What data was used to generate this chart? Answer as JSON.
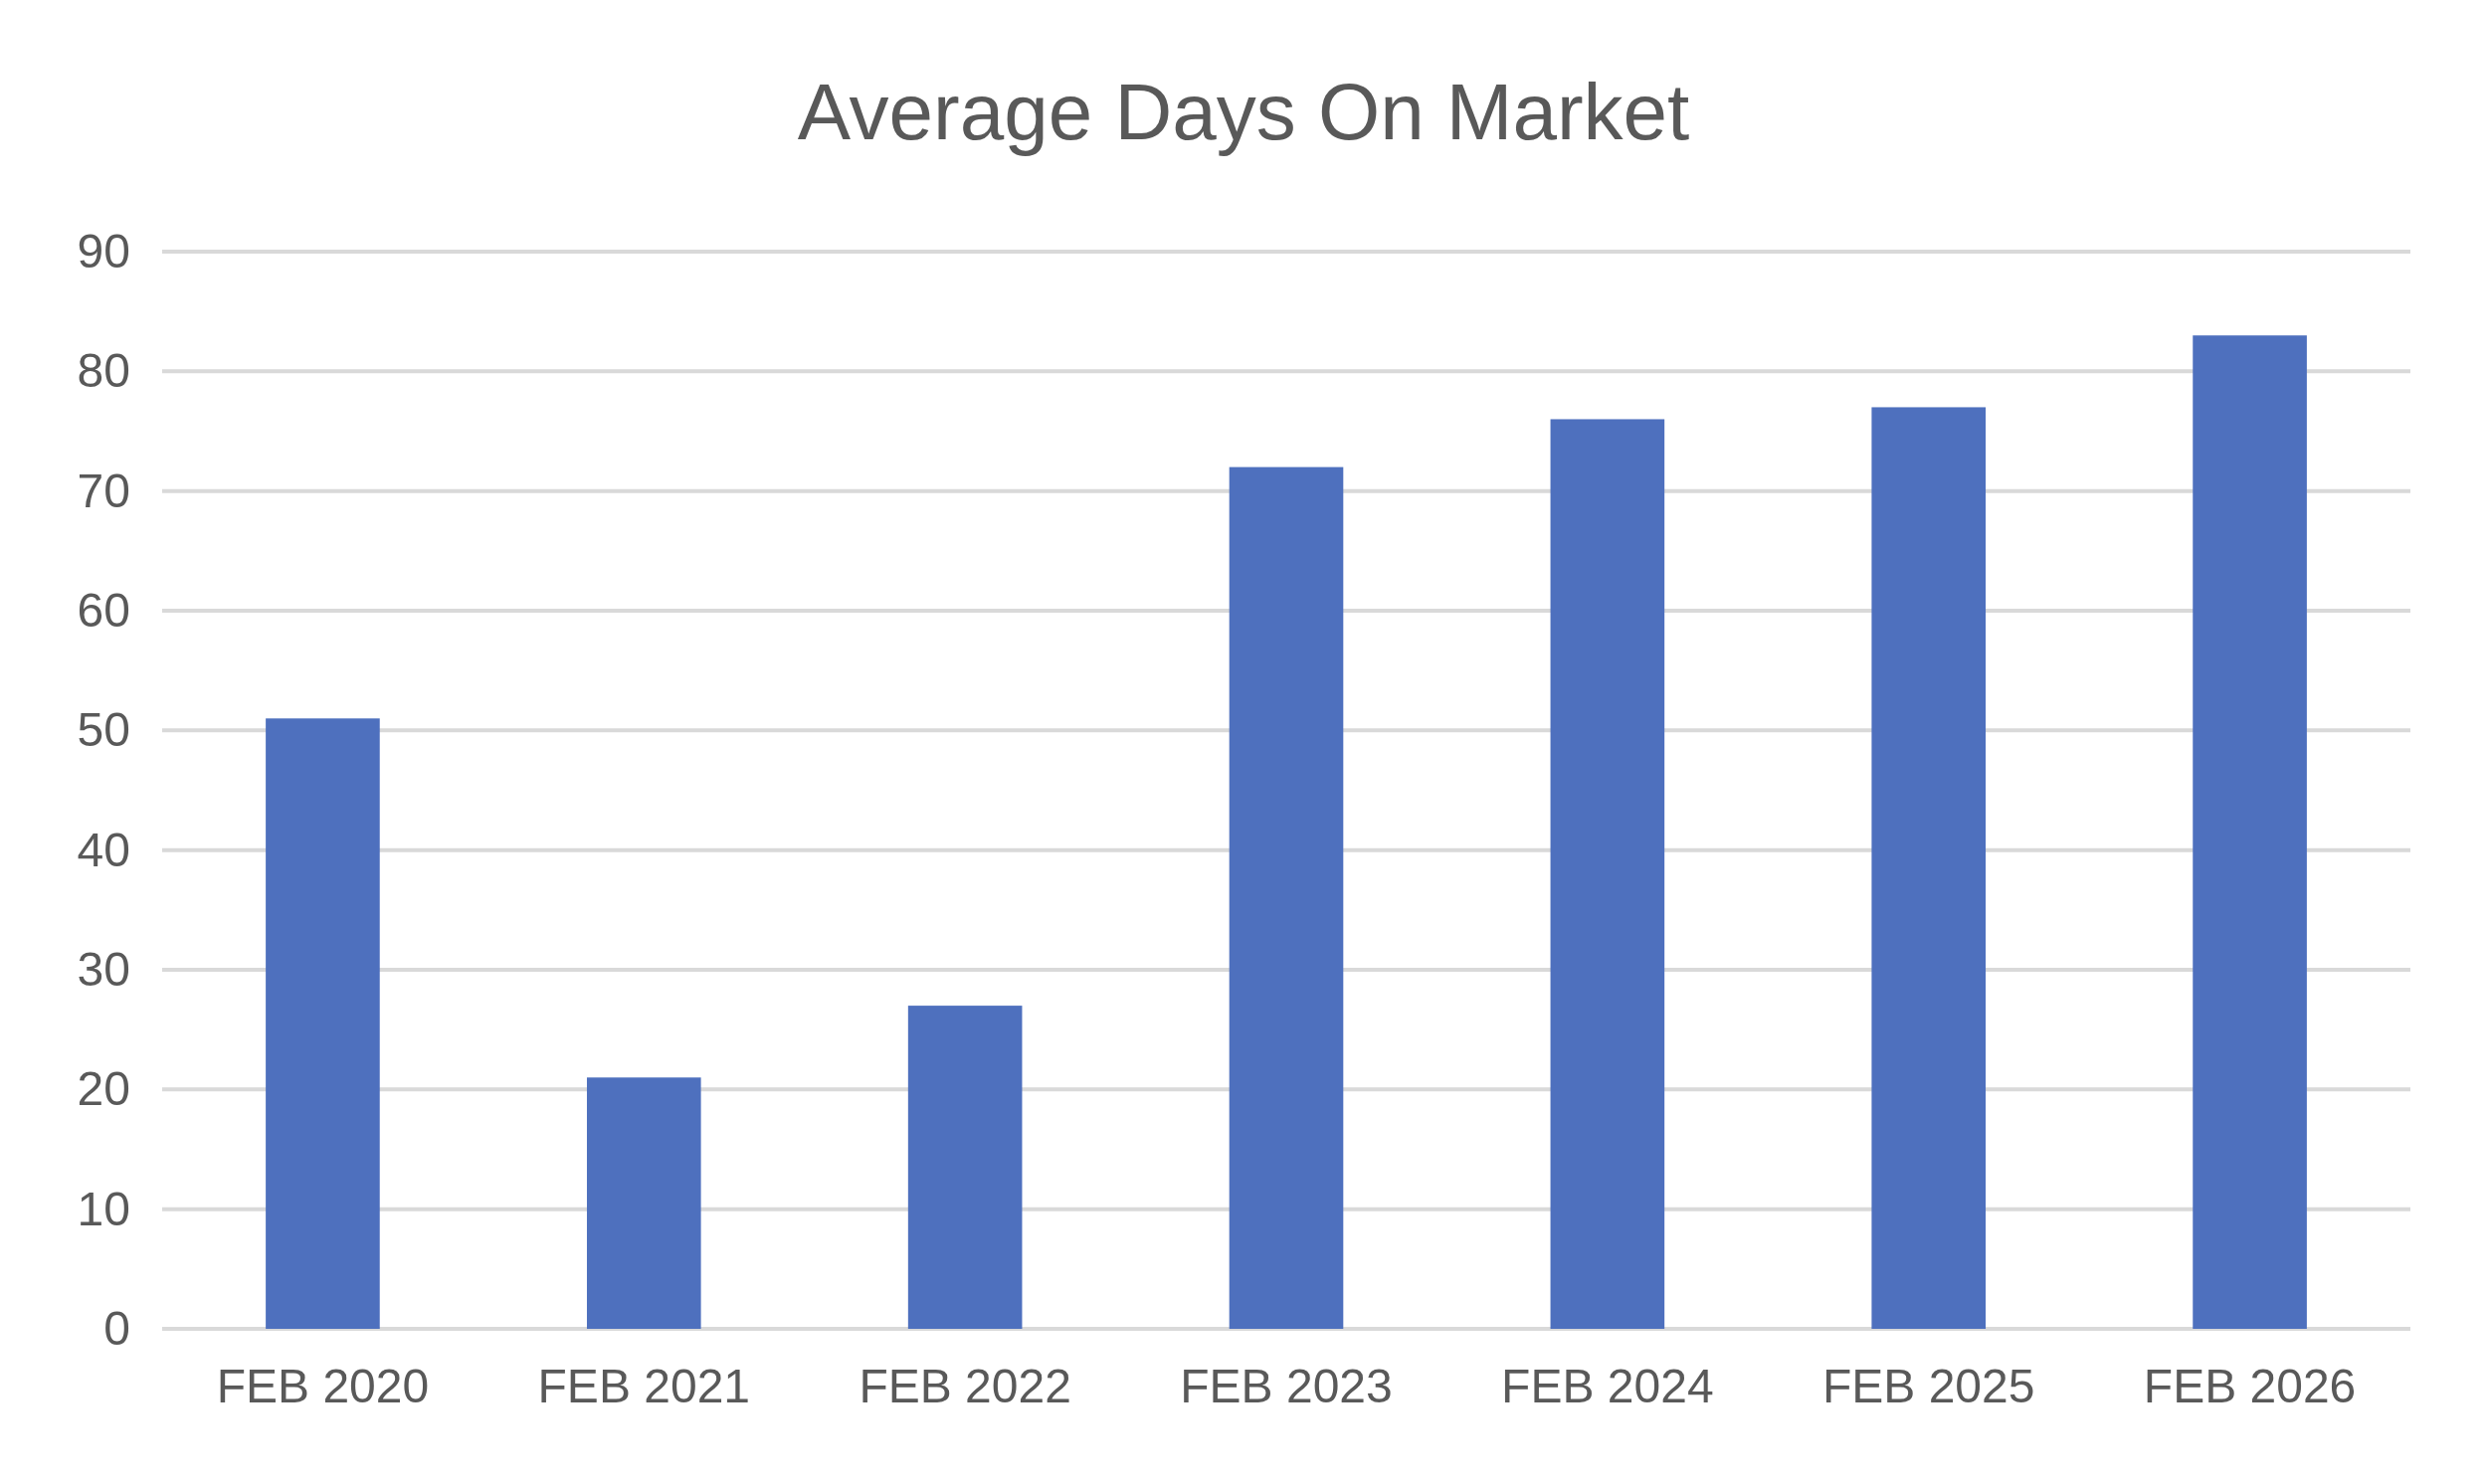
{
  "chart_data": {
    "type": "bar",
    "title": "Average Days On Market",
    "categories": [
      "FEB 2020",
      "FEB 2021",
      "FEB 2022",
      "FEB 2023",
      "FEB 2024",
      "FEB 2025",
      "FEB 2026"
    ],
    "values": [
      51,
      21,
      27,
      72,
      76,
      77,
      83
    ],
    "color": "#4e70be",
    "ylim": [
      0,
      90
    ],
    "yticks": [
      0,
      10,
      20,
      30,
      40,
      50,
      60,
      70,
      80,
      90
    ],
    "grid": "y",
    "legend": false
  }
}
